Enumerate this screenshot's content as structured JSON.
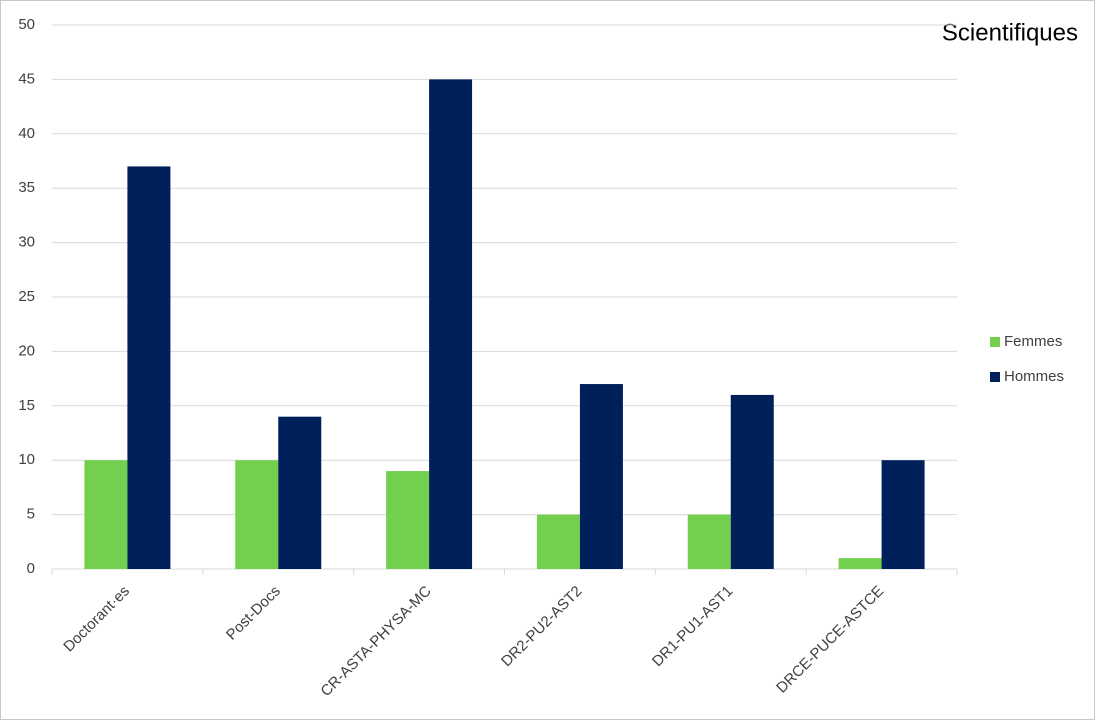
{
  "chart_data": {
    "type": "bar",
    "title": "Scientifiques",
    "categories": [
      "Doctorant·es",
      "Post-Docs",
      "CR-ASTA-PHYSA-MC",
      "DR2-PU2-AST2",
      "DR1-PU1-AST1",
      "DRCE-PUCE-ASTCE"
    ],
    "series": [
      {
        "name": "Femmes",
        "color": "#72d04e",
        "values": [
          10,
          10,
          9,
          5,
          5,
          1
        ]
      },
      {
        "name": "Hommes",
        "color": "#00205b",
        "values": [
          37,
          14,
          45,
          17,
          16,
          10
        ]
      }
    ],
    "ylim": [
      0,
      50
    ],
    "yticks": [
      0,
      5,
      10,
      15,
      20,
      25,
      30,
      35,
      40,
      45,
      50
    ],
    "grid": true,
    "legend": "right"
  }
}
